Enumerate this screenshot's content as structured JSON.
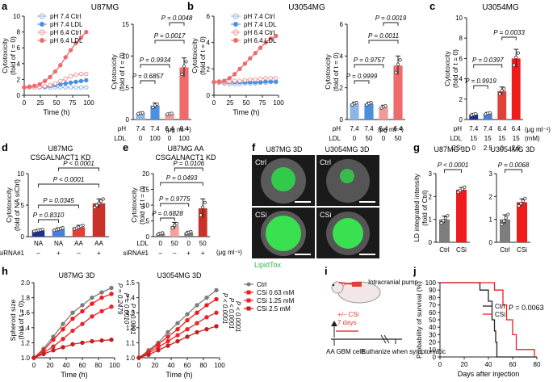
{
  "colors": {
    "ctrl74": "#8fb4e6",
    "ldl74": "#4a8fe0",
    "ctrl64": "#f09a9a",
    "ldl64": "#ef6b6b",
    "navy": "#1e2f8f",
    "blue": "#4a7fd9",
    "red": "#e0403a",
    "brightred": "#ee1c1c",
    "darkred": "#c8322a",
    "grey": "#7d7d7d",
    "pink": "#f2a0a0",
    "axis": "#222222"
  },
  "panels": {
    "a": {
      "letter": "a",
      "title": "U87MG"
    },
    "b": {
      "letter": "b",
      "title": "U3054MG"
    },
    "c": {
      "letter": "c",
      "title": "U3054MG"
    },
    "d": {
      "letter": "d",
      "title1": "U87MG",
      "title2": "CSGALNACT1 KD"
    },
    "e": {
      "letter": "e",
      "title1": "U87MG AA",
      "title2": "CSGALNACT1 KD"
    },
    "f": {
      "letter": "f",
      "title_left": "U87MG 3D",
      "title_right": "U3054MG 3D",
      "row1": "Ctrl",
      "row2": "CSi",
      "stain": "LipidTox"
    },
    "g": {
      "letter": "g",
      "title_left": "U87MG 3D",
      "title_right": "U3054MG 3D"
    },
    "h": {
      "letter": "h",
      "title_left": "U87MG 3D",
      "title_right": "U3054MG 3D"
    },
    "i": {
      "letter": "i",
      "pump": "Intracranial pump",
      "treat": "+/– CSi",
      "days": "7 days",
      "cells": "AA GBM cells",
      "end": "Euthanize when symptomatic"
    },
    "j": {
      "letter": "j"
    }
  },
  "legend_ab": [
    "pH 7.4 Ctrl",
    "pH 7.4 LDL",
    "pH 6.4 Ctrl",
    "pH 6.4 LDL"
  ],
  "legend_h": [
    "Ctrl",
    "CSi 0.63 mM",
    "CSi 1.25 mM",
    "CSi 2.5 mM"
  ],
  "legend_j": [
    "Ctrl",
    "CSi"
  ],
  "labels": {
    "cytotox1": "Cytotoxicity",
    "cytotox2": "(fold of t = 0)",
    "cytotox2_alt": "(fold of NA siCtrl)",
    "time": "Time (h)",
    "ph": "pH",
    "ldl": "LDL",
    "csi": "CSi",
    "sirna": "siRNA#1",
    "unit_ldl": "(μg ml⁻¹)",
    "unit_mm": "(mM)",
    "ld1": "LD integrated intensity",
    "ld2": "(fold of Ctrl)",
    "spheroid": "Spheroid size",
    "spheroid2": "(fold of t = 0)",
    "survival": "Probability of survival (%)",
    "days_inj": "Days after injection"
  },
  "xrow": {
    "a_ph": [
      "7.4",
      "7.4",
      "6.4",
      "6.4"
    ],
    "a_ldl": [
      "0",
      "100",
      "0",
      "100"
    ],
    "b_ph": [
      "7.4",
      "7.4",
      "6.4",
      "6.4"
    ],
    "b_ldl": [
      "0",
      "50",
      "0",
      "50"
    ],
    "c_ph": [
      "7.4",
      "7.4",
      "6.4",
      "6.4"
    ],
    "c_ldl": [
      "15",
      "15",
      "15",
      "15"
    ],
    "c_csi": [
      "0",
      "2.5",
      "0",
      "2.5"
    ],
    "d_cat": [
      "NA",
      "NA",
      "AA",
      "AA"
    ],
    "d_si": [
      "–",
      "+",
      "–",
      "+"
    ],
    "e_ldl": [
      "0",
      "50",
      "0",
      "50"
    ],
    "e_si": [
      "–",
      "–",
      "+",
      "+"
    ],
    "g_cat": [
      "Ctrl",
      "CSi"
    ]
  },
  "pvalues": {
    "a": [
      "P = 0.0048",
      "P = 0.0017",
      "P = 0.9934",
      "P = 0.6857"
    ],
    "b": [
      "P = 0.0019",
      "P = 0.0011",
      "P = 0.9757",
      "P = 0.9999"
    ],
    "c": [
      "P = 0.0033",
      "P = 0.0397",
      "P = 0.9919"
    ],
    "d": [
      "P < 0.0001",
      "P < 0.0001",
      "P = 0.0345",
      "P = 0.8310"
    ],
    "e": [
      "P = 0.0106",
      "P = 0.0493",
      "P = 0.9775",
      "P = 0.6828"
    ],
    "g": [
      "P < 0.0001",
      "P = 0.0068"
    ],
    "h1": [
      "P < 0.0001",
      "P = 0.0010",
      "P = 0.2479"
    ],
    "h2": [
      "P < 0.0001",
      "P < 0.0001",
      "P < 0.0001"
    ],
    "j": "P = 0.0063"
  },
  "chart_data": [
    {
      "id": "a_time",
      "type": "line",
      "title": "U87MG",
      "xlabel": "Time (h)",
      "ylabel": "Cytotoxicity (fold of t = 0)",
      "xlim": [
        0,
        100
      ],
      "ylim": [
        0,
        10
      ],
      "xticks": [
        0,
        25,
        50,
        75,
        100
      ],
      "yticks": [
        0,
        2,
        4,
        6,
        8,
        10
      ],
      "x": [
        0,
        8,
        16,
        24,
        32,
        40,
        48,
        56,
        64,
        72,
        80,
        88,
        96
      ],
      "series": [
        {
          "name": "pH 7.4 Ctrl",
          "values": [
            1,
            1,
            1,
            1,
            1,
            1,
            1,
            1,
            1,
            1,
            1,
            1,
            1
          ]
        },
        {
          "name": "pH 7.4 LDL",
          "values": [
            1,
            1,
            1,
            1.05,
            1.1,
            1.2,
            1.3,
            1.4,
            1.5,
            1.6,
            1.7,
            1.8,
            1.9
          ]
        },
        {
          "name": "pH 6.4 Ctrl",
          "values": [
            1,
            1,
            1,
            1.05,
            1.15,
            1.3,
            1.5,
            1.8,
            2.1,
            2.4,
            2.6,
            2.7,
            2.7
          ]
        },
        {
          "name": "pH 6.4 LDL",
          "values": [
            1,
            1.1,
            1.2,
            1.4,
            1.8,
            2.3,
            3.0,
            3.8,
            4.8,
            5.7,
            6.6,
            7.3,
            8.0
          ]
        }
      ]
    },
    {
      "id": "a_bar",
      "type": "bar",
      "categories": [
        "7.4/0",
        "7.4/100",
        "6.4/0",
        "6.4/100"
      ],
      "values": [
        1.0,
        2.2,
        0.9,
        8.2
      ],
      "errors": [
        0.1,
        0.4,
        0.1,
        1.5
      ],
      "ylim": [
        0,
        15
      ],
      "yticks": [
        0,
        5,
        10,
        15
      ],
      "ylabel": "Cytotoxicity (fold of t = 0)"
    },
    {
      "id": "b_time",
      "type": "line",
      "title": "U3054MG",
      "xlabel": "Time (h)",
      "ylabel": "Cytotoxicity (fold of t = 0)",
      "xlim": [
        0,
        100
      ],
      "ylim": [
        0,
        6
      ],
      "xticks": [
        0,
        25,
        50,
        75,
        100
      ],
      "yticks": [
        0,
        2,
        4,
        6
      ],
      "x": [
        0,
        8,
        16,
        24,
        32,
        40,
        48,
        56,
        64,
        72,
        80,
        88,
        96
      ],
      "series": [
        {
          "name": "pH 7.4 Ctrl",
          "values": [
            1,
            0.95,
            0.9,
            0.85,
            0.85,
            0.85,
            0.9,
            0.9,
            0.9,
            0.95,
            0.95,
            1,
            1
          ]
        },
        {
          "name": "pH 7.4 LDL",
          "values": [
            1,
            1,
            1,
            1,
            1,
            1,
            1,
            1,
            1,
            1,
            1.05,
            1.05,
            1.05
          ]
        },
        {
          "name": "pH 6.4 Ctrl",
          "values": [
            1,
            1,
            1,
            1.05,
            1.1,
            1.1,
            1.15,
            1.2,
            1.2,
            1.25,
            1.3,
            1.3,
            1.3
          ]
        },
        {
          "name": "pH 6.4 LDL",
          "values": [
            1,
            1.05,
            1.1,
            1.3,
            1.6,
            2.0,
            2.4,
            2.8,
            3.2,
            3.6,
            4.0,
            4.3,
            4.5
          ]
        }
      ]
    },
    {
      "id": "b_bar",
      "type": "bar",
      "categories": [
        "7.4/0",
        "7.4/50",
        "6.4/0",
        "6.4/50"
      ],
      "values": [
        1.0,
        1.0,
        0.8,
        3.4
      ],
      "errors": [
        0.1,
        0.1,
        0.1,
        0.6
      ],
      "ylim": [
        0,
        6
      ],
      "yticks": [
        0,
        2,
        4,
        6
      ],
      "ylabel": "Cytotoxicity (fold of t = 0)"
    },
    {
      "id": "c_bar",
      "type": "bar",
      "title": "U3054MG",
      "categories": [
        "7.4/0",
        "7.4/2.5",
        "6.4/0",
        "6.4/2.5"
      ],
      "values": [
        0.5,
        0.6,
        2.8,
        6.0
      ],
      "errors": [
        0.1,
        0.1,
        0.4,
        0.9
      ],
      "ylim": [
        0,
        10
      ],
      "yticks": [
        0,
        2,
        4,
        6,
        8,
        10
      ],
      "ylabel": "Cytotoxicity (fold of t = 0)"
    },
    {
      "id": "d_bar",
      "type": "bar",
      "title": "U87MG CSGALNACT1 KD",
      "categories": [
        "NA –",
        "NA +",
        "AA –",
        "AA +"
      ],
      "values": [
        1.0,
        1.2,
        1.5,
        5.3
      ],
      "errors": [
        0.15,
        0.2,
        0.3,
        0.7
      ],
      "ylim": [
        0,
        10
      ],
      "yticks": [
        0,
        5,
        10
      ],
      "ylabel": "Cytotoxicity (fold of NA siCtrl)"
    },
    {
      "id": "e_bar",
      "type": "bar",
      "title": "U87MG AA CSGALNACT1 KD",
      "categories": [
        "0 –",
        "50 –",
        "0 +",
        "50 +"
      ],
      "values": [
        1.0,
        3.5,
        1.3,
        9.0
      ],
      "errors": [
        0.3,
        1.0,
        0.4,
        3.0
      ],
      "ylim": [
        0,
        20
      ],
      "yticks": [
        0,
        5,
        10,
        15,
        20
      ],
      "ylabel": "Cytotoxicity (fold of t = 0)"
    },
    {
      "id": "g1_bar",
      "type": "bar",
      "title": "U87MG 3D",
      "categories": [
        "Ctrl",
        "CSi"
      ],
      "values": [
        1.0,
        2.3
      ],
      "errors": [
        0.15,
        0.1
      ],
      "ylim": [
        0,
        3
      ],
      "yticks": [
        0,
        1,
        2,
        3
      ],
      "ylabel": "LD integrated intensity (fold of Ctrl)"
    },
    {
      "id": "g2_bar",
      "type": "bar",
      "title": "U3054MG 3D",
      "categories": [
        "Ctrl",
        "CSi"
      ],
      "values": [
        1.0,
        1.75
      ],
      "errors": [
        0.2,
        0.15
      ],
      "ylim": [
        0,
        3
      ],
      "yticks": [
        0,
        1,
        2,
        3
      ]
    },
    {
      "id": "h1_line",
      "type": "line",
      "title": "U87MG 3D",
      "xlabel": "Time (h)",
      "ylabel": "Spheroid size (fold of t = 0)",
      "xlim": [
        0,
        100
      ],
      "ylim": [
        1.0,
        2.0
      ],
      "xticks": [
        0,
        20,
        40,
        60,
        80,
        100
      ],
      "yticks": [
        1.0,
        1.2,
        1.4,
        1.6,
        1.8,
        2.0
      ],
      "x": [
        0,
        12,
        24,
        36,
        48,
        60,
        72,
        84,
        96
      ],
      "series": [
        {
          "name": "Ctrl",
          "values": [
            1.0,
            1.12,
            1.28,
            1.45,
            1.6,
            1.7,
            1.8,
            1.87,
            1.93
          ]
        },
        {
          "name": "CSi 0.63 mM",
          "values": [
            1.0,
            1.1,
            1.24,
            1.38,
            1.52,
            1.62,
            1.72,
            1.8,
            1.85
          ]
        },
        {
          "name": "CSi 1.25 mM",
          "values": [
            1.0,
            1.07,
            1.15,
            1.25,
            1.36,
            1.45,
            1.55,
            1.62,
            1.68
          ]
        },
        {
          "name": "CSi 2.5 mM",
          "values": [
            1.0,
            1.05,
            1.1,
            1.14,
            1.18,
            1.2,
            1.22,
            1.23,
            1.24
          ]
        }
      ]
    },
    {
      "id": "h2_line",
      "type": "line",
      "title": "U3054MG 3D",
      "xlabel": "Time (h)",
      "xlim": [
        0,
        100
      ],
      "ylim": [
        1.0,
        1.5
      ],
      "xticks": [
        0,
        20,
        40,
        60,
        80,
        100
      ],
      "yticks": [
        1.0,
        1.1,
        1.2,
        1.3,
        1.4,
        1.5
      ],
      "x": [
        0,
        12,
        24,
        36,
        48,
        60,
        72,
        84,
        96
      ],
      "series": [
        {
          "name": "Ctrl",
          "values": [
            1.0,
            1.05,
            1.1,
            1.17,
            1.23,
            1.29,
            1.35,
            1.4,
            1.45
          ]
        },
        {
          "name": "CSi 0.63 mM",
          "values": [
            1.0,
            1.04,
            1.09,
            1.14,
            1.19,
            1.25,
            1.3,
            1.35,
            1.39
          ]
        },
        {
          "name": "CSi 1.25 mM",
          "values": [
            1.0,
            1.03,
            1.07,
            1.11,
            1.15,
            1.19,
            1.23,
            1.27,
            1.3
          ]
        },
        {
          "name": "CSi 2.5 mM",
          "values": [
            1.0,
            1.02,
            1.05,
            1.08,
            1.11,
            1.14,
            1.17,
            1.19,
            1.21
          ]
        }
      ]
    },
    {
      "id": "j_surv",
      "type": "line",
      "subtype": "step",
      "xlabel": "Days after injection",
      "ylabel": "Probability of survival (%)",
      "xlim": [
        0,
        80
      ],
      "ylim": [
        0,
        100
      ],
      "xticks": [
        0,
        20,
        40,
        60,
        80
      ],
      "yticks": [
        0,
        10,
        20,
        30,
        40,
        50,
        60,
        70,
        80,
        90,
        100
      ],
      "series": [
        {
          "name": "Ctrl",
          "x": [
            0,
            33,
            40,
            43,
            45,
            46,
            47,
            80
          ],
          "values": [
            100,
            90,
            75,
            50,
            35,
            20,
            0,
            0
          ]
        },
        {
          "name": "CSi",
          "x": [
            0,
            45,
            52,
            55,
            60,
            63,
            78
          ],
          "values": [
            100,
            90,
            70,
            50,
            30,
            10,
            0
          ]
        }
      ]
    }
  ]
}
